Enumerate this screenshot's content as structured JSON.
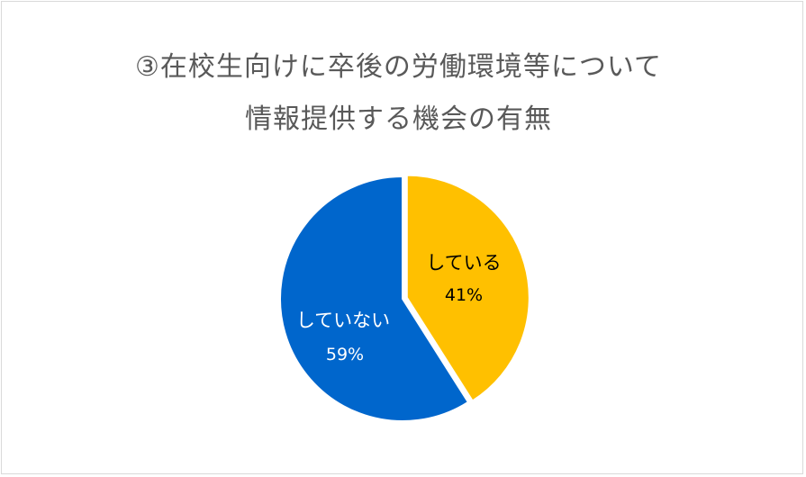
{
  "chart_data": {
    "type": "pie",
    "title_lines": [
      "③在校生向けに卒後の労働環境等について",
      "情報提供する機会の有無"
    ],
    "categories": [
      "している",
      "していない"
    ],
    "values": [
      41,
      59
    ],
    "value_labels": [
      "41%",
      "59%"
    ],
    "colors": [
      "#FFC000",
      "#0066CC"
    ],
    "label_colors": [
      "#000000",
      "#FFFFFF"
    ],
    "legend": "none"
  }
}
